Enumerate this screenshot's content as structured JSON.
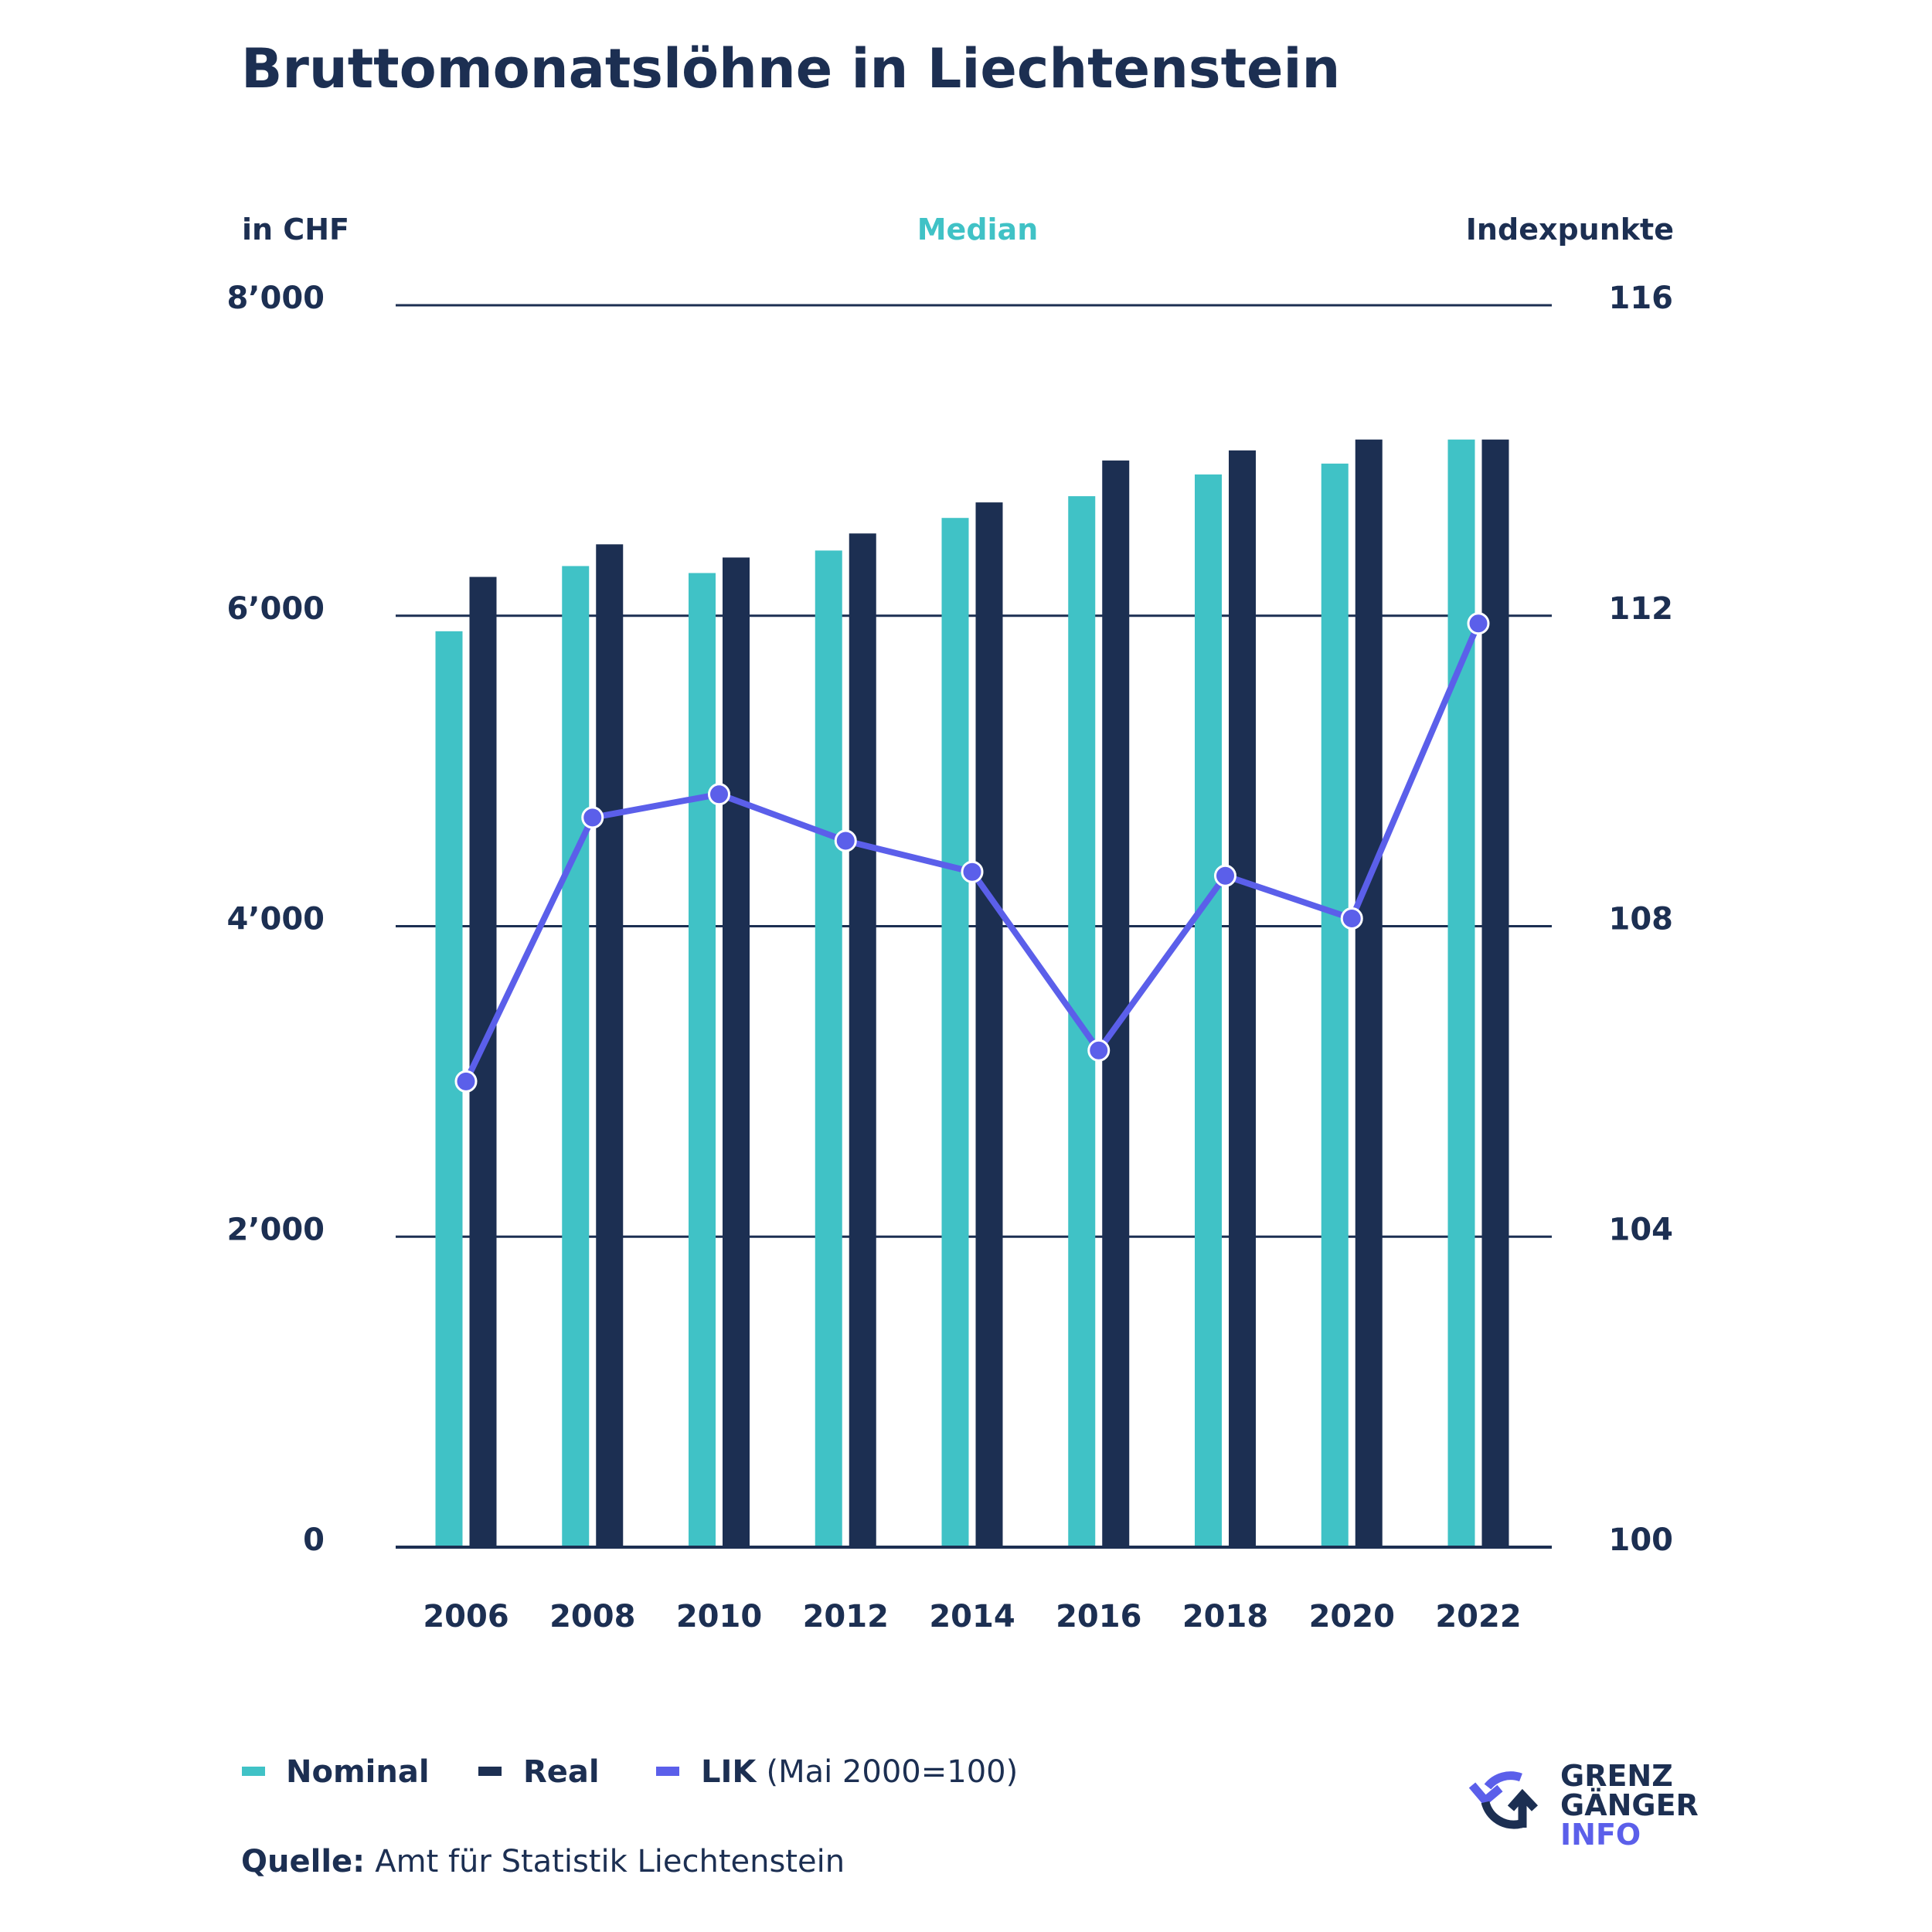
{
  "chart_data": {
    "type": "bar",
    "title": "Bruttomonatslöhne in Liechtenstein",
    "subtitle": "Median",
    "ylabel": "in CHF",
    "y2label": "Indexpunkte",
    "xlabel": "",
    "categories": [
      "2006",
      "2008",
      "2010",
      "2012",
      "2014",
      "2016",
      "2018",
      "2020",
      "2022"
    ],
    "ylim": [
      0,
      8000
    ],
    "y2lim": [
      100,
      116
    ],
    "yticks": [
      0,
      2000,
      4000,
      6000,
      8000
    ],
    "ytick_labels": [
      "0",
      "2’000",
      "4’000",
      "6’000",
      "8’000"
    ],
    "y2ticks": [
      100,
      104,
      108,
      112,
      116
    ],
    "y2tick_labels": [
      "100",
      "104",
      "108",
      "112",
      "116"
    ],
    "grid": true,
    "series": [
      {
        "name": "Nominal",
        "type": "bar",
        "axis": "left",
        "color": "#40c2c6",
        "values": [
          5900,
          6320,
          6275,
          6420,
          6630,
          6770,
          6910,
          6980,
          7135
        ]
      },
      {
        "name": "Real",
        "type": "bar",
        "axis": "left",
        "color": "#1c2f52",
        "values": [
          6250,
          6460,
          6375,
          6530,
          6730,
          7000,
          7065,
          7135,
          7135
        ]
      },
      {
        "name": "LIK",
        "note": "(Mai 2000=100)",
        "type": "line",
        "axis": "right",
        "color": "#5b5fea",
        "values": [
          106.0,
          109.4,
          109.7,
          109.1,
          108.7,
          106.4,
          108.65,
          108.1,
          111.9
        ]
      }
    ],
    "legend_position": "bottom-left",
    "source_label": "Quelle:",
    "source_text": "Amt für Statistik Liechtenstein"
  },
  "logo": {
    "line1": "GRENZ",
    "line2": "GÄNGER",
    "line3": "INFO",
    "icon": "circular-arrows-icon",
    "color_primary": "#1c2f52",
    "color_accent": "#5b5fea"
  }
}
